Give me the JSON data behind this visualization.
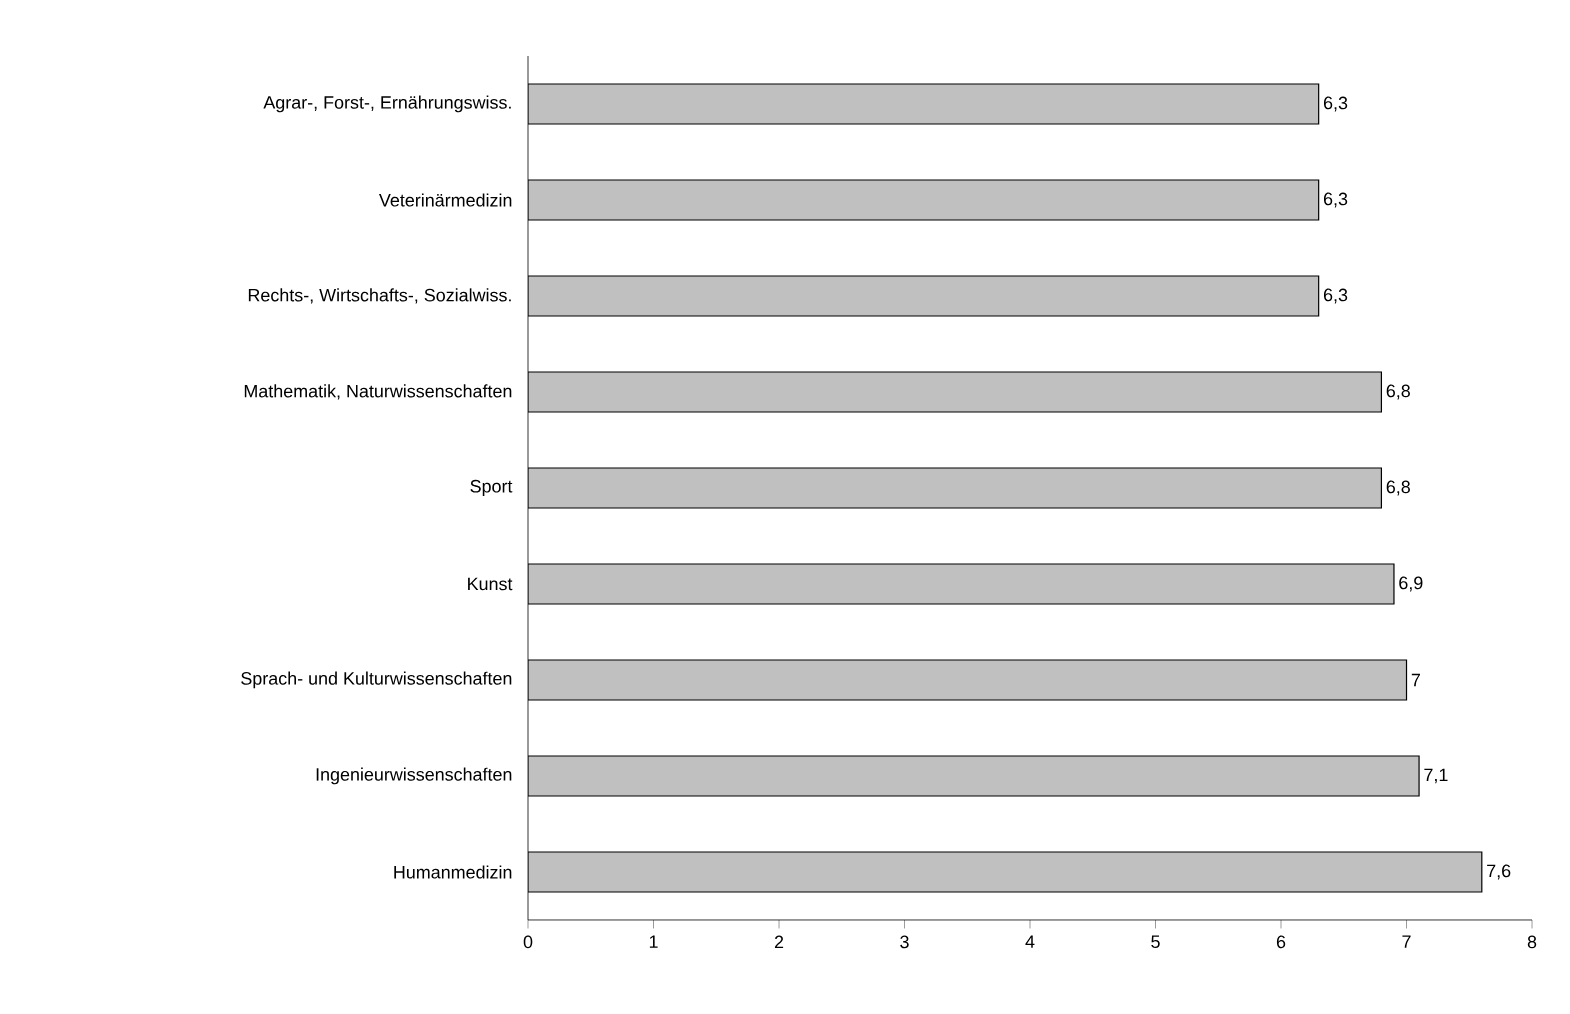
{
  "chart_data": {
    "type": "bar",
    "orientation": "horizontal",
    "categories": [
      "Agrar-, Forst-, Ernährungswiss.",
      "Veterinärmedizin",
      "Rechts-, Wirtschafts-, Sozialwiss.",
      "Mathematik, Naturwissenschaften",
      "Sport",
      "Kunst",
      "Sprach- und Kulturwissenschaften",
      "Ingenieurwissenschaften",
      "Humanmedizin"
    ],
    "values": [
      6.3,
      6.3,
      6.3,
      6.8,
      6.8,
      6.9,
      7,
      7.1,
      7.6
    ],
    "value_labels": [
      "6,3",
      "6,3",
      "6,3",
      "6,8",
      "6,8",
      "6,9",
      "7",
      "7,1",
      "7,6"
    ],
    "color": "#c0c0c0",
    "xlim": [
      0,
      8
    ],
    "xticks": [
      0,
      1,
      2,
      3,
      4,
      5,
      6,
      7,
      8
    ]
  }
}
